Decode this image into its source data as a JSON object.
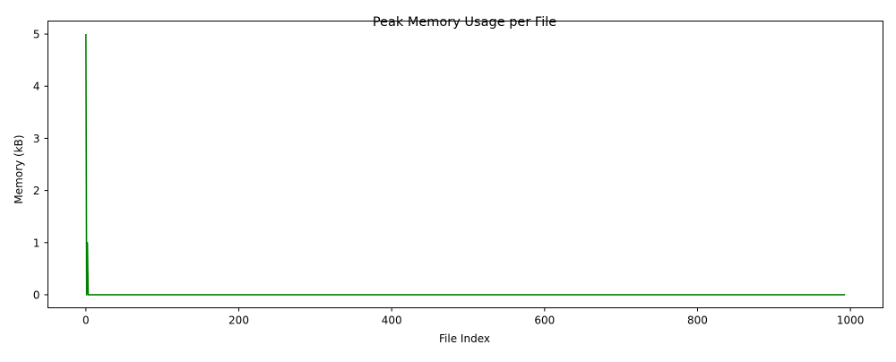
{
  "chart_data": {
    "type": "line",
    "title": "Peak Memory Usage per File",
    "xlabel": "File Index",
    "ylabel": "Memory (kB)",
    "xlim": [
      -49.65,
      1042.65
    ],
    "ylim": [
      -0.25,
      5.25
    ],
    "xticks": [
      0,
      200,
      400,
      600,
      800,
      1000
    ],
    "yticks": [
      0,
      1,
      2,
      3,
      4,
      5
    ],
    "grid": false,
    "legend": "none",
    "series": [
      {
        "color": "#008000",
        "points": [
          [
            0,
            5
          ],
          [
            1,
            0
          ],
          [
            2,
            1
          ],
          [
            3,
            0
          ],
          [
            993,
            0
          ]
        ]
      }
    ]
  }
}
